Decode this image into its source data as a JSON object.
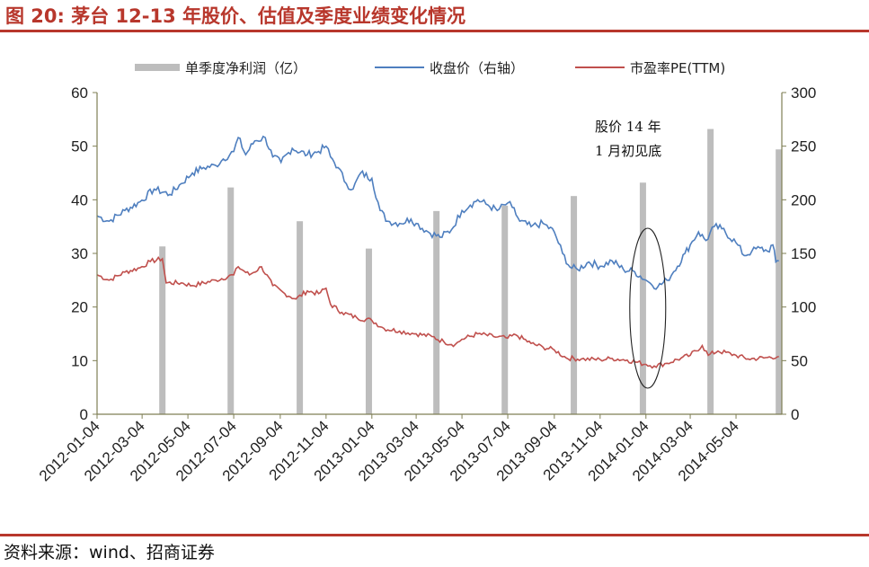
{
  "title": "图 20: 茅台 12-13 年股价、估值及季度业绩变化情况",
  "source": "资料来源：wind、招商证券",
  "colors": {
    "accent": "#b8372c",
    "bar": "#bdbdbd",
    "price": "#4f7fbf",
    "pe": "#c0504d",
    "axis": "#7f7f55"
  },
  "chart_data": {
    "type": "bar",
    "title": "",
    "xlabel": "",
    "ylabel": "",
    "ylim": [
      0,
      60
    ],
    "y2lim": [
      0,
      300
    ],
    "y_ticks": [
      "0",
      "10",
      "20",
      "30",
      "40",
      "50",
      "60"
    ],
    "y2_ticks": [
      "0",
      "50",
      "100",
      "150",
      "200",
      "250",
      "300"
    ],
    "x_tick_labels": [
      "2012-01-04",
      "2012-03-04",
      "2012-05-04",
      "2012-07-04",
      "2012-09-04",
      "2012-11-04",
      "2013-01-04",
      "2013-03-04",
      "2013-05-04",
      "2013-07-04",
      "2013-09-04",
      "2013-11-04",
      "2014-01-04",
      "2014-03-04",
      "2014-05-04"
    ],
    "x_range": [
      "2012-01-04",
      "2014-07-04"
    ],
    "legend": {
      "position": "top",
      "items": [
        "单季度净利润（亿）",
        "收盘价（右轴）",
        "市盈率PE(TTM)"
      ]
    },
    "series": [
      {
        "name": "单季度净利润（亿）",
        "type": "bar",
        "axis": "left",
        "x": [
          "2012-03-31",
          "2012-06-30",
          "2012-09-30",
          "2012-12-31",
          "2013-03-31",
          "2013-06-30",
          "2013-09-30",
          "2013-12-31",
          "2014-03-31",
          "2014-06-30"
        ],
        "values": [
          31.3,
          42.3,
          36.0,
          30.9,
          37.9,
          38.9,
          40.7,
          43.2,
          53.2,
          49.4
        ]
      },
      {
        "name": "收盘价（右轴）",
        "type": "line",
        "axis": "right",
        "points": [
          [
            "2012-01-04",
            185
          ],
          [
            "2012-01-20",
            180
          ],
          [
            "2012-02-10",
            190
          ],
          [
            "2012-03-01",
            198
          ],
          [
            "2012-03-20",
            210
          ],
          [
            "2012-04-10",
            205
          ],
          [
            "2012-04-25",
            215
          ],
          [
            "2012-05-10",
            225
          ],
          [
            "2012-05-25",
            230
          ],
          [
            "2012-06-10",
            232
          ],
          [
            "2012-06-20",
            238
          ],
          [
            "2012-07-04",
            245
          ],
          [
            "2012-07-10",
            258
          ],
          [
            "2012-07-20",
            242
          ],
          [
            "2012-08-01",
            255
          ],
          [
            "2012-08-15",
            258
          ],
          [
            "2012-08-25",
            240
          ],
          [
            "2012-09-05",
            235
          ],
          [
            "2012-09-20",
            248
          ],
          [
            "2012-10-10",
            242
          ],
          [
            "2012-10-25",
            245
          ],
          [
            "2012-11-04",
            250
          ],
          [
            "2012-11-10",
            240
          ],
          [
            "2012-11-20",
            230
          ],
          [
            "2012-12-01",
            215
          ],
          [
            "2012-12-10",
            210
          ],
          [
            "2012-12-20",
            225
          ],
          [
            "2013-01-04",
            220
          ],
          [
            "2013-01-15",
            190
          ],
          [
            "2013-01-25",
            180
          ],
          [
            "2013-02-10",
            178
          ],
          [
            "2013-02-25",
            182
          ],
          [
            "2013-03-04",
            178
          ],
          [
            "2013-03-20",
            170
          ],
          [
            "2013-04-05",
            165
          ],
          [
            "2013-04-20",
            172
          ],
          [
            "2013-05-04",
            190
          ],
          [
            "2013-05-15",
            195
          ],
          [
            "2013-05-25",
            200
          ],
          [
            "2013-06-05",
            196
          ],
          [
            "2013-06-20",
            190
          ],
          [
            "2013-07-04",
            197
          ],
          [
            "2013-07-10",
            193
          ],
          [
            "2013-07-20",
            180
          ],
          [
            "2013-08-04",
            175
          ],
          [
            "2013-08-20",
            178
          ],
          [
            "2013-09-04",
            170
          ],
          [
            "2013-09-15",
            150
          ],
          [
            "2013-09-25",
            137
          ],
          [
            "2013-10-05",
            135
          ],
          [
            "2013-10-20",
            142
          ],
          [
            "2013-11-04",
            138
          ],
          [
            "2013-11-20",
            143
          ],
          [
            "2013-12-05",
            135
          ],
          [
            "2013-12-20",
            133
          ],
          [
            "2014-01-04",
            125
          ],
          [
            "2014-01-10",
            122
          ],
          [
            "2014-01-20",
            119
          ],
          [
            "2014-02-01",
            125
          ],
          [
            "2014-02-10",
            133
          ],
          [
            "2014-02-25",
            150
          ],
          [
            "2014-03-04",
            158
          ],
          [
            "2014-03-15",
            170
          ],
          [
            "2014-03-25",
            162
          ],
          [
            "2014-04-05",
            175
          ],
          [
            "2014-04-15",
            173
          ],
          [
            "2014-05-04",
            160
          ],
          [
            "2014-05-15",
            148
          ],
          [
            "2014-05-25",
            152
          ],
          [
            "2014-06-05",
            155
          ],
          [
            "2014-06-15",
            152
          ],
          [
            "2014-06-22",
            158
          ],
          [
            "2014-06-26",
            142
          ],
          [
            "2014-06-30",
            143
          ]
        ]
      },
      {
        "name": "市盈率PE(TTM)",
        "type": "line",
        "axis": "left",
        "points": [
          [
            "2012-01-04",
            26
          ],
          [
            "2012-01-20",
            25
          ],
          [
            "2012-02-10",
            26.5
          ],
          [
            "2012-03-01",
            27.3
          ],
          [
            "2012-03-15",
            28.5
          ],
          [
            "2012-03-31",
            29
          ],
          [
            "2012-04-05",
            24.5
          ],
          [
            "2012-04-25",
            24.5
          ],
          [
            "2012-05-10",
            24
          ],
          [
            "2012-06-10",
            25
          ],
          [
            "2012-07-04",
            26
          ],
          [
            "2012-07-10",
            27.5
          ],
          [
            "2012-07-25",
            26
          ],
          [
            "2012-08-10",
            27.5
          ],
          [
            "2012-08-25",
            24
          ],
          [
            "2012-09-10",
            22.5
          ],
          [
            "2012-09-25",
            21.5
          ],
          [
            "2012-10-10",
            23
          ],
          [
            "2012-10-25",
            22.5
          ],
          [
            "2012-11-04",
            23.5
          ],
          [
            "2012-11-10",
            20.5
          ],
          [
            "2012-11-25",
            19
          ],
          [
            "2012-12-15",
            18
          ],
          [
            "2013-01-04",
            17.5
          ],
          [
            "2013-01-20",
            16
          ],
          [
            "2013-02-10",
            15.5
          ],
          [
            "2013-03-04",
            15
          ],
          [
            "2013-03-25",
            14.5
          ],
          [
            "2013-04-10",
            13.5
          ],
          [
            "2013-04-25",
            13
          ],
          [
            "2013-05-04",
            14
          ],
          [
            "2013-05-25",
            15
          ],
          [
            "2013-06-15",
            14.5
          ],
          [
            "2013-07-04",
            14.2
          ],
          [
            "2013-07-15",
            14.8
          ],
          [
            "2013-08-04",
            13.2
          ],
          [
            "2013-08-20",
            12.5
          ],
          [
            "2013-09-04",
            12
          ],
          [
            "2013-09-20",
            10.5
          ],
          [
            "2013-10-10",
            10.3
          ],
          [
            "2013-11-04",
            10.2
          ],
          [
            "2013-11-20",
            10.4
          ],
          [
            "2013-12-10",
            10.1
          ],
          [
            "2014-01-04",
            9.3
          ],
          [
            "2014-01-15",
            9
          ],
          [
            "2014-02-01",
            9.5
          ],
          [
            "2014-02-20",
            10.5
          ],
          [
            "2014-03-04",
            11
          ],
          [
            "2014-03-20",
            12.8
          ],
          [
            "2014-03-28",
            11
          ],
          [
            "2014-04-10",
            11.8
          ],
          [
            "2014-05-04",
            11
          ],
          [
            "2014-05-20",
            10.3
          ],
          [
            "2014-06-10",
            10.5
          ],
          [
            "2014-06-30",
            10.8
          ]
        ]
      }
    ],
    "annotations": [
      {
        "text": [
          "股价 14 年",
          "1 月初见底"
        ],
        "target_date": "2014-01-04",
        "target_value": 120,
        "axis": "right"
      }
    ]
  }
}
